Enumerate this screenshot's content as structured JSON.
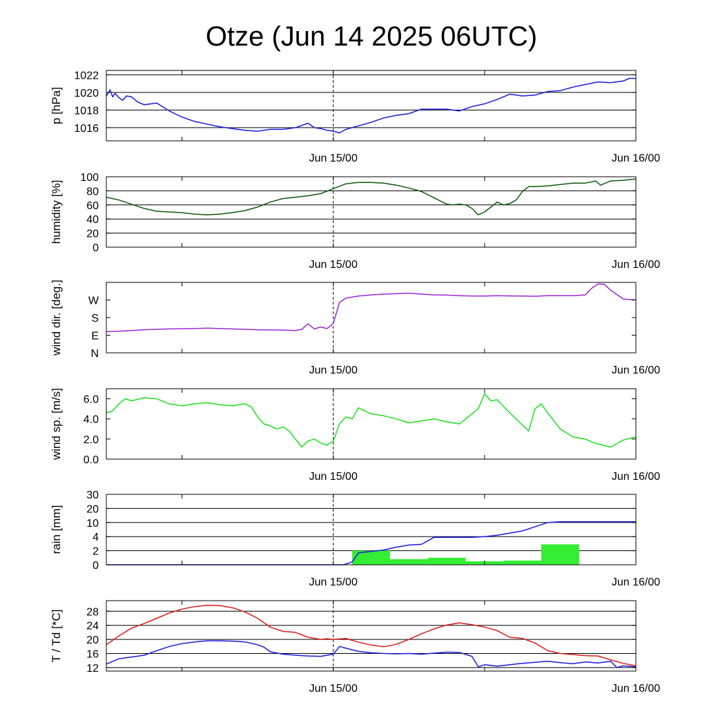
{
  "title": "Otze (Jun 14 2025 06UTC)",
  "chart_data": [
    {
      "id": "pressure",
      "type": "line",
      "ylabel": "p [hPa]",
      "x_range": [
        0,
        42
      ],
      "ylim": [
        1014.5,
        1022.5
      ],
      "yticks": [
        1016,
        1018,
        1020,
        1022
      ],
      "ytick_labels": [
        "1016",
        "1018",
        "1020",
        "1022"
      ],
      "grid": true,
      "series": [
        {
          "color": "#1a1adc",
          "x": [
            0,
            0.3,
            0.5,
            0.7,
            1.0,
            1.3,
            1.6,
            2.0,
            2.5,
            3.0,
            4.0,
            5.0,
            6.0,
            7.0,
            8.0,
            9.0,
            10.0,
            11.0,
            12.0,
            13.0,
            14.0,
            15.0,
            16.0,
            16.5,
            17.0,
            17.5,
            18.0,
            18.5,
            19.0,
            20.0,
            21.0,
            22.0,
            23.0,
            24.0,
            25.0,
            26.0,
            27.0,
            28.0,
            29.0,
            30.0,
            31.0,
            32.0,
            33.0,
            34.0,
            35.0,
            36.0,
            37.0,
            38.0,
            39.0,
            40.0,
            41.0,
            41.5,
            42.0
          ],
          "y": [
            1019.6,
            1020.3,
            1019.5,
            1019.9,
            1019.4,
            1019.1,
            1019.6,
            1019.5,
            1018.9,
            1018.6,
            1018.8,
            1017.9,
            1017.2,
            1016.7,
            1016.4,
            1016.1,
            1015.9,
            1015.7,
            1015.6,
            1015.8,
            1015.8,
            1016.0,
            1016.5,
            1016.0,
            1015.9,
            1015.7,
            1015.6,
            1015.4,
            1015.8,
            1016.2,
            1016.6,
            1017.1,
            1017.4,
            1017.6,
            1018.1,
            1018.1,
            1018.1,
            1017.9,
            1018.4,
            1018.7,
            1019.2,
            1019.8,
            1019.6,
            1019.7,
            1020.1,
            1020.2,
            1020.6,
            1020.9,
            1021.2,
            1021.1,
            1021.3,
            1021.6,
            1021.6
          ]
        }
      ]
    },
    {
      "id": "humidity",
      "type": "line",
      "ylabel": "humidity [%]",
      "x_range": [
        0,
        42
      ],
      "ylim": [
        0,
        100
      ],
      "yticks": [
        0,
        20,
        40,
        60,
        80,
        100
      ],
      "ytick_labels": [
        "0",
        "20",
        "40",
        "60",
        "80",
        "100"
      ],
      "grid": true,
      "series": [
        {
          "color": "#0e5a0e",
          "x": [
            0,
            1,
            2,
            3,
            4,
            5,
            6,
            7,
            8,
            9,
            10,
            11,
            12,
            13,
            14,
            15,
            16,
            17,
            18,
            19,
            20,
            21,
            22,
            23,
            24,
            25,
            26,
            27,
            27.5,
            28,
            28.5,
            29,
            29.5,
            30,
            30.5,
            31,
            31.5,
            32,
            32.5,
            33,
            33.5,
            34,
            35,
            36,
            37,
            38,
            38.8,
            39.2,
            40,
            41,
            42
          ],
          "y": [
            71,
            67,
            61,
            55,
            51,
            50,
            49,
            47,
            46,
            47,
            49,
            52,
            57,
            64,
            69,
            71,
            73,
            76,
            83,
            90,
            92,
            92,
            91,
            88,
            84,
            79,
            70,
            61,
            60,
            61,
            60,
            55,
            46,
            50,
            57,
            64,
            60,
            62,
            67,
            79,
            86,
            86,
            87,
            89,
            91,
            91,
            94,
            88,
            94,
            95,
            97
          ]
        }
      ]
    },
    {
      "id": "wind_direction",
      "type": "line",
      "ylabel": "wind dir. [deg.]",
      "x_range": [
        0,
        42
      ],
      "ylim": [
        0,
        360
      ],
      "yticks": [
        0,
        90,
        180,
        270
      ],
      "ytick_labels": [
        "N",
        "E",
        "S",
        "W"
      ],
      "grid": false,
      "series": [
        {
          "color": "#9a2ad8",
          "x": [
            0,
            1,
            2,
            3,
            4,
            5,
            6,
            7,
            8,
            9,
            10,
            11,
            12,
            13,
            14,
            15,
            15.5,
            16,
            16.5,
            17,
            17.5,
            18,
            18.5,
            19,
            20,
            21,
            22,
            23,
            24,
            25,
            26,
            27,
            28,
            29,
            30,
            31,
            32,
            33,
            34,
            35,
            36,
            37,
            38,
            38.5,
            39,
            39.5,
            40,
            41,
            42
          ],
          "y": [
            108,
            110,
            114,
            118,
            120,
            122,
            123,
            124,
            126,
            124,
            122,
            120,
            118,
            117,
            116,
            114,
            120,
            148,
            122,
            132,
            124,
            150,
            258,
            280,
            290,
            296,
            300,
            302,
            305,
            300,
            296,
            295,
            292,
            290,
            290,
            292,
            291,
            290,
            289,
            292,
            292,
            292,
            296,
            330,
            352,
            350,
            320,
            275,
            270
          ]
        }
      ]
    },
    {
      "id": "wind_speed",
      "type": "line",
      "ylabel": "wind sp. [m/s]",
      "x_range": [
        0,
        42
      ],
      "ylim": [
        0,
        7
      ],
      "yticks": [
        0,
        2,
        4,
        6
      ],
      "ytick_labels": [
        "0.0",
        "2.0",
        "4.0",
        "6.0"
      ],
      "grid": false,
      "series": [
        {
          "color": "#1de01d",
          "x": [
            0,
            0.5,
            1,
            1.5,
            2,
            3,
            4,
            5,
            6,
            7,
            8,
            9,
            10,
            11,
            11.5,
            12,
            12.5,
            13,
            13.5,
            14,
            14.5,
            15,
            15.5,
            16,
            16.5,
            17,
            17.5,
            18,
            18.5,
            19,
            19.5,
            20,
            20.5,
            21,
            22,
            23,
            24,
            25,
            26,
            27,
            28,
            29,
            29.5,
            30,
            30.5,
            31,
            32,
            33,
            33.5,
            34,
            34.5,
            35,
            36,
            37,
            38,
            38.5,
            39,
            40,
            41,
            42
          ],
          "y": [
            4.6,
            4.8,
            5.5,
            6.0,
            5.8,
            6.1,
            6.0,
            5.5,
            5.3,
            5.5,
            5.6,
            5.4,
            5.3,
            5.5,
            5.2,
            4.2,
            3.5,
            3.3,
            3.0,
            3.2,
            2.8,
            2.0,
            1.2,
            1.8,
            2.0,
            1.6,
            1.4,
            1.8,
            3.5,
            4.2,
            4.0,
            5.1,
            4.8,
            4.5,
            4.3,
            4.0,
            3.6,
            3.8,
            4.0,
            3.7,
            3.5,
            4.5,
            5.0,
            6.5,
            5.8,
            5.9,
            4.6,
            3.4,
            2.8,
            5.0,
            5.5,
            4.6,
            3.0,
            2.2,
            2.0,
            1.7,
            1.5,
            1.2,
            1.9,
            2.2
          ]
        }
      ]
    },
    {
      "id": "rain",
      "type": "bar",
      "ylabel": "rain [mm]",
      "x_range": [
        0,
        42
      ],
      "ylim": [
        0,
        5
      ],
      "yticks": [
        0,
        1,
        2,
        3,
        4,
        5
      ],
      "ytick_labels": [
        "0",
        "2",
        "4",
        "10",
        "20",
        "30"
      ],
      "grid": true,
      "bars": {
        "color": "#33ee33",
        "x_start": [
          19.5,
          22.5,
          25.5,
          28.5,
          31.5,
          34.5
        ],
        "x_end": [
          22.5,
          25.5,
          28.5,
          31.5,
          34.5,
          37.5
        ],
        "values": [
          1.0,
          0.4,
          0.5,
          0.25,
          0.3,
          1.45
        ]
      },
      "series": [
        {
          "color": "#1a1adc",
          "x": [
            0,
            18.8,
            19.5,
            20,
            21,
            22,
            23,
            24,
            25,
            26,
            27,
            28,
            29,
            30,
            31,
            32,
            33,
            34,
            35,
            36,
            37,
            38,
            39,
            40,
            41,
            42
          ],
          "y": [
            0,
            0,
            0.2,
            0.85,
            0.95,
            1.05,
            1.25,
            1.4,
            1.45,
            1.95,
            1.95,
            1.95,
            1.95,
            2.0,
            2.1,
            2.25,
            2.4,
            2.7,
            3.0,
            3.05,
            3.05,
            3.05,
            3.05,
            3.05,
            3.05,
            3.05
          ]
        }
      ]
    },
    {
      "id": "temperature",
      "type": "line",
      "ylabel": "T / Td [*C]",
      "x_range": [
        0,
        42
      ],
      "ylim": [
        11,
        31
      ],
      "yticks": [
        12,
        16,
        20,
        24,
        28
      ],
      "ytick_labels": [
        "12",
        "16",
        "20",
        "24",
        "28"
      ],
      "grid": true,
      "series": [
        {
          "color": "#dd1a1a",
          "x": [
            0,
            1,
            2,
            3,
            4,
            5,
            6,
            7,
            8,
            9,
            10,
            11,
            12,
            13,
            14,
            15,
            16,
            17,
            17.5,
            18,
            19,
            20,
            21,
            22,
            23,
            24,
            25,
            26,
            27,
            28,
            29,
            30,
            31,
            32,
            33,
            34,
            35,
            36,
            37,
            38,
            39,
            40,
            41,
            42
          ],
          "y": [
            18.5,
            21,
            23.2,
            24.5,
            26,
            27.5,
            28.6,
            29.3,
            29.7,
            29.6,
            29,
            27.8,
            26,
            23.5,
            22.3,
            22,
            20.6,
            20,
            20.2,
            20,
            20.3,
            19.2,
            18.4,
            17.9,
            18.6,
            20,
            21.6,
            23,
            24.1,
            24.7,
            24.2,
            23.5,
            22.5,
            20.6,
            20.3,
            19,
            16.8,
            16,
            15.7,
            15.4,
            15.3,
            14.2,
            13.2,
            12.5
          ]
        },
        {
          "color": "#1a1adc",
          "x": [
            0,
            1,
            2,
            3,
            4,
            5,
            6,
            7,
            8,
            9,
            10,
            11,
            12,
            12.5,
            13,
            14,
            15,
            16,
            17,
            18,
            18.5,
            19,
            20,
            21,
            22,
            23,
            24,
            25,
            26,
            27,
            28,
            29,
            29.5,
            30,
            31,
            32,
            33,
            34,
            35,
            36,
            37,
            38,
            39,
            40,
            40.5,
            41,
            42
          ],
          "y": [
            13,
            14.5,
            15,
            15.5,
            16.8,
            18,
            18.8,
            19.3,
            19.6,
            19.6,
            19.5,
            19.3,
            18.5,
            17.8,
            16.5,
            15.8,
            15.5,
            15.3,
            15.2,
            15.8,
            18,
            17.5,
            16.6,
            16.2,
            16,
            15.9,
            16,
            15.8,
            16.1,
            16.4,
            16.3,
            15.2,
            12.2,
            12.8,
            12.4,
            12.8,
            13.2,
            13.5,
            13.8,
            13.4,
            13.1,
            13.6,
            13.3,
            13.8,
            12,
            12.5,
            12.2
          ]
        }
      ]
    }
  ],
  "x_ticks": [
    {
      "x": 18,
      "label": "Jun 15/00"
    },
    {
      "x": 42,
      "label": "Jun 16/00"
    }
  ],
  "x_minor_ticks": [
    6,
    18,
    30,
    42
  ],
  "now_marker_x": 18
}
